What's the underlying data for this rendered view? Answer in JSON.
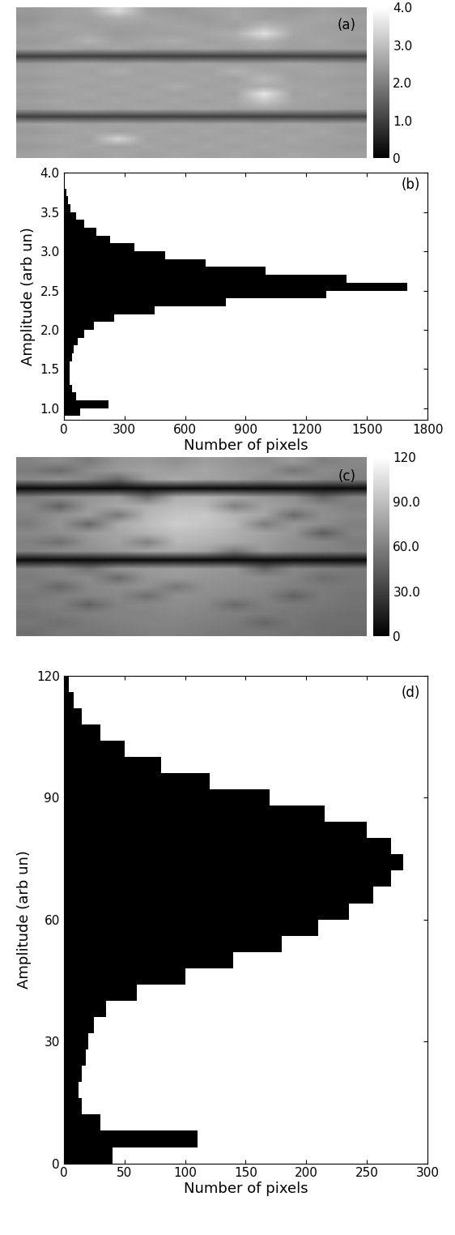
{
  "chart_data": [
    {
      "type": "heatmap",
      "annotation": "(a)",
      "cells": [
        [
          2.4,
          2.5,
          2.6,
          3.4,
          2.5,
          2.4,
          2.5,
          2.6,
          2.5,
          2.4,
          2.5,
          2.4
        ],
        [
          2.3,
          2.5,
          2.5,
          2.7,
          2.6,
          2.5,
          2.4,
          2.6,
          2.5,
          2.5,
          2.6,
          2.5
        ],
        [
          2.4,
          2.6,
          2.5,
          2.5,
          2.5,
          2.6,
          2.5,
          2.5,
          2.9,
          2.6,
          2.5,
          2.4
        ],
        [
          2.5,
          2.5,
          2.6,
          2.4,
          2.5,
          2.5,
          2.6,
          2.7,
          3.5,
          2.6,
          2.5,
          2.5
        ],
        [
          2.4,
          2.5,
          2.8,
          2.5,
          2.6,
          2.7,
          2.5,
          2.6,
          2.8,
          2.5,
          2.6,
          2.4
        ],
        [
          2.5,
          2.6,
          2.5,
          2.6,
          2.5,
          2.5,
          2.6,
          2.5,
          2.6,
          2.5,
          2.5,
          2.5
        ],
        [
          1.0,
          1.0,
          1.0,
          1.0,
          1.0,
          1.0,
          1.0,
          1.0,
          1.0,
          1.0,
          1.0,
          1.0
        ],
        [
          2.4,
          2.5,
          2.6,
          2.5,
          2.6,
          2.5,
          2.6,
          2.5,
          2.5,
          2.6,
          2.5,
          2.4
        ],
        [
          2.5,
          2.6,
          2.5,
          2.7,
          2.5,
          2.6,
          2.5,
          2.8,
          2.6,
          2.5,
          2.6,
          2.5
        ],
        [
          2.4,
          2.5,
          2.6,
          2.5,
          2.6,
          2.5,
          2.6,
          2.5,
          2.9,
          2.5,
          2.5,
          2.4
        ],
        [
          2.5,
          2.6,
          2.5,
          2.6,
          2.5,
          2.7,
          2.5,
          2.6,
          2.7,
          2.6,
          2.5,
          2.5
        ],
        [
          2.4,
          2.5,
          2.6,
          2.5,
          2.6,
          2.5,
          2.6,
          2.5,
          3.6,
          2.5,
          2.6,
          2.4
        ],
        [
          2.5,
          2.6,
          2.5,
          2.6,
          2.5,
          2.6,
          2.5,
          2.6,
          3.1,
          2.6,
          2.5,
          2.5
        ],
        [
          2.4,
          2.5,
          2.6,
          2.5,
          2.6,
          2.5,
          2.6,
          2.5,
          2.6,
          2.5,
          2.5,
          2.4
        ],
        [
          1.0,
          1.0,
          1.0,
          1.0,
          1.0,
          1.0,
          1.0,
          1.0,
          1.0,
          1.0,
          1.0,
          1.0
        ],
        [
          2.5,
          2.6,
          2.5,
          2.6,
          2.5,
          2.6,
          2.5,
          2.6,
          2.5,
          2.6,
          2.5,
          2.5
        ],
        [
          2.4,
          2.5,
          2.6,
          2.5,
          2.6,
          2.5,
          2.6,
          2.5,
          2.6,
          2.5,
          2.6,
          2.4
        ],
        [
          2.5,
          2.6,
          2.5,
          3.3,
          2.5,
          2.6,
          2.5,
          2.6,
          2.5,
          2.6,
          2.5,
          2.5
        ],
        [
          2.4,
          2.5,
          2.6,
          2.5,
          2.6,
          2.5,
          2.6,
          2.5,
          2.6,
          2.5,
          2.5,
          2.4
        ],
        [
          2.5,
          2.6,
          2.5,
          2.6,
          2.5,
          2.6,
          2.5,
          2.6,
          2.5,
          2.6,
          2.5,
          2.5
        ]
      ],
      "colorbar_range": [
        0,
        4.0
      ],
      "colorbar_ticks": [
        0,
        {
          "value": 1,
          "label": "1.0"
        },
        {
          "value": 2,
          "label": "2.0"
        },
        {
          "value": 3,
          "label": "3.0"
        },
        {
          "value": 4,
          "label": "4.0"
        }
      ]
    },
    {
      "type": "histogram",
      "orientation": "horizontal",
      "annotation": "(b)",
      "x_label": "Number of pixels",
      "y_label": "Amplitude (arb un)",
      "bins": [
        0.9,
        1.0,
        1.1,
        1.2,
        1.3,
        1.4,
        1.5,
        1.6,
        1.7,
        1.8,
        1.9,
        2.0,
        2.1,
        2.2,
        2.3,
        2.4,
        2.5,
        2.6,
        2.7,
        2.8,
        2.9,
        3.0,
        3.1,
        3.2,
        3.3,
        3.4,
        3.5,
        3.6,
        3.7,
        3.8,
        3.9,
        4.0
      ],
      "values": [
        80,
        220,
        60,
        40,
        30,
        30,
        30,
        40,
        50,
        70,
        100,
        150,
        250,
        450,
        800,
        1300,
        1700,
        1400,
        1000,
        700,
        500,
        350,
        230,
        160,
        100,
        60,
        35,
        20,
        12,
        6,
        3
      ],
      "color": "#000000",
      "xlim": [
        0,
        1800
      ],
      "xticks": [
        0,
        300,
        600,
        900,
        1200,
        1500,
        1800
      ],
      "ylim": [
        0.85,
        4.0
      ],
      "yticks": [
        1.0,
        1.5,
        2.0,
        2.5,
        3.0,
        3.5,
        4.0
      ]
    },
    {
      "type": "heatmap",
      "annotation": "(c)",
      "cells": [
        [
          62,
          66,
          58,
          70,
          72,
          68,
          74,
          70,
          66,
          72,
          60,
          64
        ],
        [
          58,
          50,
          66,
          72,
          76,
          74,
          78,
          72,
          70,
          55,
          66,
          62
        ],
        [
          64,
          68,
          62,
          48,
          74,
          80,
          76,
          74,
          66,
          70,
          62,
          60
        ],
        [
          5,
          5,
          5,
          5,
          5,
          5,
          5,
          5,
          5,
          5,
          5,
          5
        ],
        [
          60,
          66,
          70,
          74,
          52,
          82,
          84,
          78,
          72,
          68,
          48,
          62
        ],
        [
          64,
          46,
          72,
          78,
          82,
          88,
          86,
          60,
          76,
          70,
          66,
          60
        ],
        [
          62,
          68,
          74,
          56,
          86,
          92,
          94,
          84,
          78,
          50,
          68,
          64
        ],
        [
          58,
          70,
          48,
          80,
          88,
          96,
          92,
          86,
          58,
          72,
          66,
          60
        ],
        [
          64,
          66,
          72,
          78,
          84,
          90,
          88,
          82,
          76,
          70,
          44,
          62
        ],
        [
          60,
          52,
          70,
          76,
          60,
          86,
          84,
          80,
          74,
          68,
          64,
          58
        ],
        [
          62,
          66,
          68,
          72,
          78,
          80,
          76,
          56,
          72,
          66,
          62,
          60
        ],
        [
          5,
          5,
          5,
          5,
          5,
          5,
          5,
          5,
          5,
          5,
          5,
          5
        ],
        [
          60,
          64,
          54,
          70,
          72,
          74,
          72,
          70,
          48,
          64,
          60,
          58
        ],
        [
          58,
          62,
          66,
          50,
          70,
          72,
          70,
          68,
          66,
          62,
          52,
          56
        ],
        [
          60,
          48,
          64,
          66,
          68,
          56,
          68,
          66,
          64,
          60,
          58,
          56
        ],
        [
          56,
          60,
          62,
          64,
          52,
          68,
          66,
          64,
          62,
          46,
          58,
          54
        ],
        [
          58,
          60,
          46,
          62,
          64,
          66,
          64,
          50,
          60,
          58,
          56,
          54
        ],
        [
          54,
          58,
          60,
          62,
          62,
          64,
          62,
          60,
          58,
          56,
          54,
          52
        ],
        [
          56,
          52,
          58,
          60,
          62,
          62,
          60,
          58,
          48,
          56,
          52,
          52
        ],
        [
          52,
          56,
          56,
          58,
          60,
          60,
          58,
          56,
          56,
          54,
          52,
          50
        ]
      ],
      "colorbar_range": [
        0,
        120
      ],
      "colorbar_ticks": [
        0,
        {
          "value": 30,
          "label": "30.0"
        },
        {
          "value": 60,
          "label": "60.0"
        },
        {
          "value": 90,
          "label": "90.0"
        },
        120
      ]
    },
    {
      "type": "histogram",
      "orientation": "horizontal",
      "annotation": "(d)",
      "x_label": "Number of pixels",
      "y_label": "Amplitude (arb un)",
      "bins": [
        0,
        4,
        8,
        12,
        16,
        20,
        24,
        28,
        32,
        36,
        40,
        44,
        48,
        52,
        56,
        60,
        64,
        68,
        72,
        76,
        80,
        84,
        88,
        92,
        96,
        100,
        104,
        108,
        112,
        116,
        120
      ],
      "values": [
        40,
        110,
        30,
        15,
        12,
        15,
        18,
        20,
        25,
        35,
        60,
        100,
        140,
        180,
        210,
        235,
        255,
        270,
        280,
        270,
        250,
        215,
        170,
        120,
        80,
        50,
        30,
        15,
        8,
        4
      ],
      "color": "#000000",
      "xlim": [
        0,
        300
      ],
      "xticks": [
        0,
        50,
        100,
        150,
        200,
        250,
        300
      ],
      "ylim": [
        0,
        120
      ],
      "yticks": [
        0,
        30,
        60,
        90,
        120
      ]
    }
  ]
}
